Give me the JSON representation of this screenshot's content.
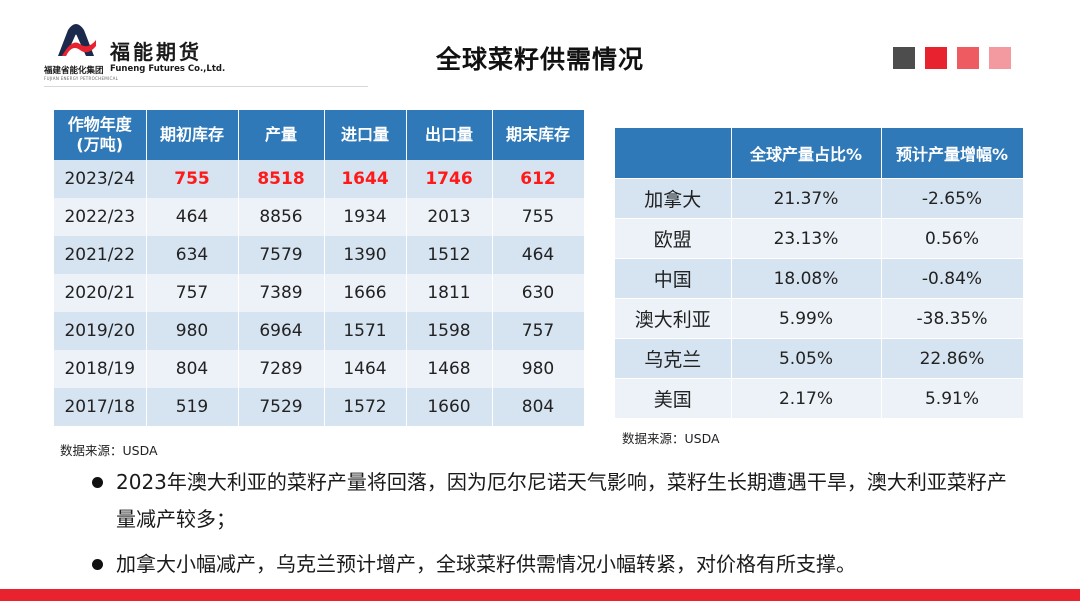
{
  "header": {
    "company_cn": "福能期货",
    "company_en": "Funeng Futures Co.,Ltd.",
    "group_cn": "福建省能化集团",
    "group_en": "FUJIAN ENERGY PETROCHEMICAL",
    "title": "全球菜籽供需情况"
  },
  "colors": {
    "squares": [
      "#4d4d4d",
      "#e8232f",
      "#ee5c62",
      "#f39aa0"
    ],
    "header_blue": "#2f79b8",
    "highlight_red": "#ff1a1a"
  },
  "table_left": {
    "headers": [
      "作物年度\n(万吨)",
      "期初库存",
      "产量",
      "进口量",
      "出口量",
      "期末库存"
    ],
    "rows": [
      [
        "2023/24",
        "755",
        "8518",
        "1644",
        "1746",
        "612"
      ],
      [
        "2022/23",
        "464",
        "8856",
        "1934",
        "2013",
        "755"
      ],
      [
        "2021/22",
        "634",
        "7579",
        "1390",
        "1512",
        "464"
      ],
      [
        "2020/21",
        "757",
        "7389",
        "1666",
        "1811",
        "630"
      ],
      [
        "2019/20",
        "980",
        "6964",
        "1571",
        "1598",
        "757"
      ],
      [
        "2018/19",
        "804",
        "7289",
        "1464",
        "1468",
        "980"
      ],
      [
        "2017/18",
        "519",
        "7529",
        "1572",
        "1660",
        "804"
      ]
    ],
    "source": "数据来源：USDA"
  },
  "table_right": {
    "headers": [
      "",
      "全球产量占比%",
      "预计产量增幅%"
    ],
    "rows": [
      [
        "加拿大",
        "21.37%",
        "-2.65%"
      ],
      [
        "欧盟",
        "23.13%",
        "0.56%"
      ],
      [
        "中国",
        "18.08%",
        "-0.84%"
      ],
      [
        "澳大利亚",
        "5.99%",
        "-38.35%"
      ],
      [
        "乌克兰",
        "5.05%",
        "22.86%"
      ],
      [
        "美国",
        "2.17%",
        "5.91%"
      ]
    ],
    "source": "数据来源：USDA"
  },
  "bullets": [
    "2023年澳大利亚的菜籽产量将回落，因为厄尔尼诺天气影响，菜籽生长期遭遇干旱，澳大利亚菜籽产量减产较多；",
    "加拿大小幅减产，乌克兰预计增产，全球菜籽供需情况小幅转紧，对价格有所支撑。"
  ]
}
